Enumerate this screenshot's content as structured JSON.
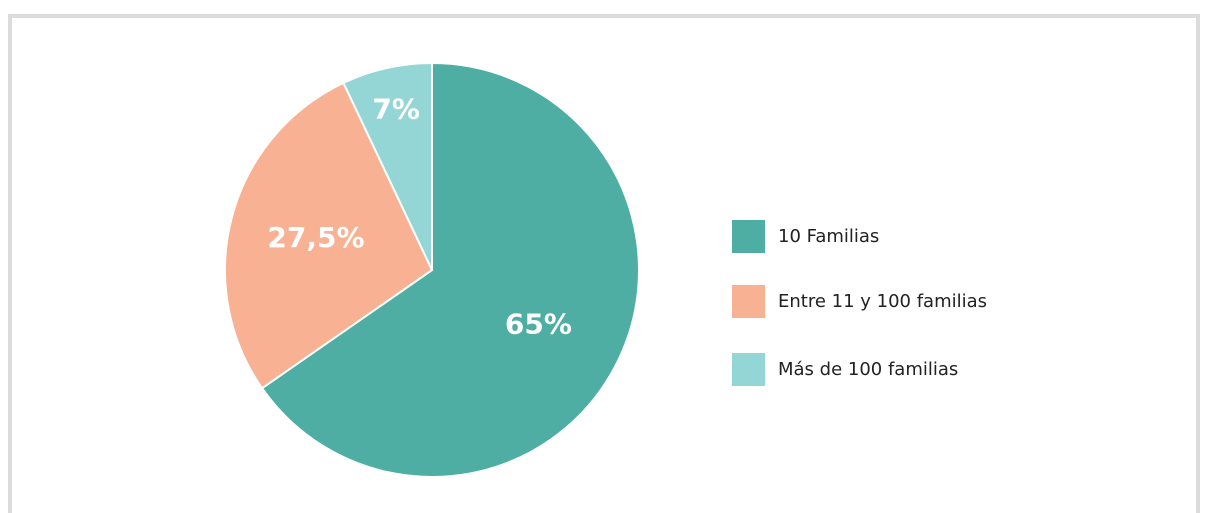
{
  "chart_data": {
    "type": "pie",
    "categories": [
      "10 Familias",
      "Entre 11 y 100 familias",
      "Más de 100 familias"
    ],
    "values": [
      65,
      27.5,
      7
    ],
    "value_labels": [
      "65%",
      "27,5%",
      "7%"
    ],
    "colors": [
      "#4eaea3",
      "#f8b193",
      "#94d5d6"
    ],
    "legend": "right"
  }
}
